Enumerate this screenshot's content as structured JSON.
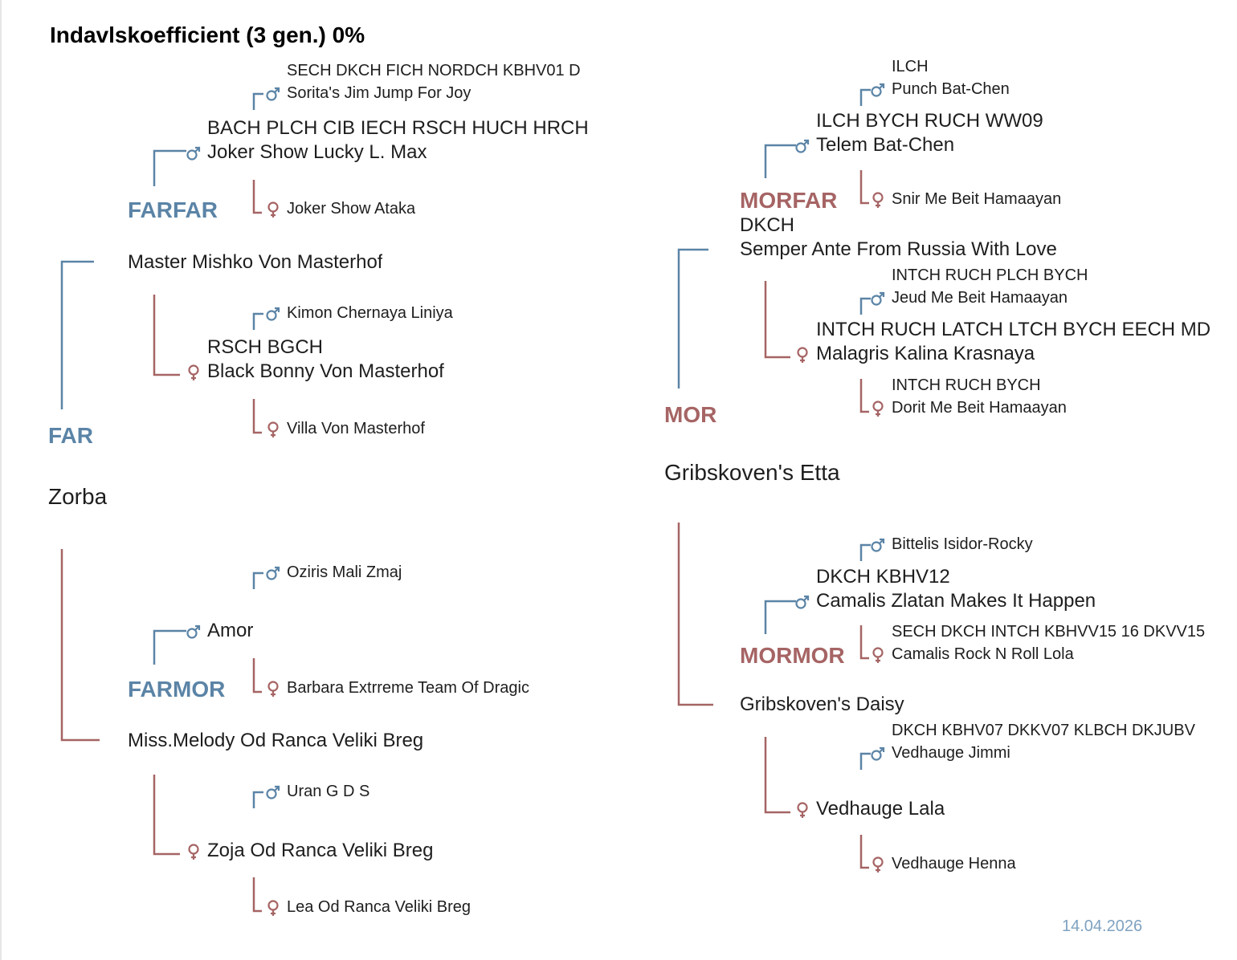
{
  "title": "Indavlskoefficient (3 gen.) 0%",
  "date": "14.04.2026",
  "labels": [
    "FAR",
    "FARFAR",
    "FARMOR",
    "MOR",
    "MORFAR",
    "MORMOR"
  ],
  "pedigree": {
    "sire": {
      "name": "Zorba",
      "sire": {
        "name": "Master Mishko Von Masterhof",
        "sire": {
          "titles": "BACH PLCH CIB IECH RSCH HUCH HRCH",
          "name": "Joker Show Lucky L. Max",
          "sire": {
            "titles": "SECH DKCH FICH NORDCH KBHV01 D",
            "name": "Sorita's Jim Jump For Joy"
          },
          "dam": {
            "name": "Joker Show Ataka"
          }
        },
        "dam": {
          "titles": "RSCH BGCH",
          "name": "Black Bonny Von Masterhof",
          "sire": {
            "name": "Kimon Chernaya Liniya"
          },
          "dam": {
            "name": "Villa Von Masterhof"
          }
        }
      },
      "dam": {
        "name": "Miss.Melody Od Ranca Veliki Breg",
        "sire": {
          "name": "Amor",
          "sire": {
            "name": "Oziris Mali Zmaj"
          },
          "dam": {
            "name": "Barbara Extrreme Team Of Dragic"
          }
        },
        "dam": {
          "name": "Zoja Od Ranca Veliki Breg",
          "sire": {
            "name": "Uran G D S"
          },
          "dam": {
            "name": "Lea Od Ranca Veliki Breg"
          }
        }
      }
    },
    "dam": {
      "name": "Gribskoven's Etta",
      "sire": {
        "titles": "DKCH",
        "name": "Semper Ante From Russia With Love",
        "sire": {
          "titles": "ILCH BYCH RUCH WW09",
          "name": "Telem Bat-Chen",
          "sire": {
            "titles": "ILCH",
            "name": "Punch Bat-Chen"
          },
          "dam": {
            "name": "Snir Me Beit Hamaayan"
          }
        },
        "dam": {
          "titles": "INTCH RUCH LATCH LTCH BYCH EECH MDC",
          "name": "Malagris Kalina Krasnaya",
          "sire": {
            "titles": "INTCH RUCH PLCH BYCH",
            "name": "Jeud Me Beit Hamaayan"
          },
          "dam": {
            "titles": "INTCH RUCH BYCH",
            "name": "Dorit Me Beit Hamaayan"
          }
        }
      },
      "dam": {
        "name": "Gribskoven's Daisy",
        "sire": {
          "titles": "DKCH KBHV12",
          "name": "Camalis Zlatan Makes It Happen",
          "sire": {
            "name": "Bittelis Isidor-Rocky"
          },
          "dam": {
            "titles": "SECH DKCH INTCH KBHVV15 16 DKVV15",
            "name": "Camalis Rock N Roll Lola"
          }
        },
        "dam": {
          "name": "Vedhauge Lala",
          "sire": {
            "titles": "DKCH KBHV07 DKKV07 KLBCH DKJUBV",
            "name": "Vedhauge Jimmi"
          },
          "dam": {
            "name": "Vedhauge Henna"
          }
        }
      }
    }
  }
}
